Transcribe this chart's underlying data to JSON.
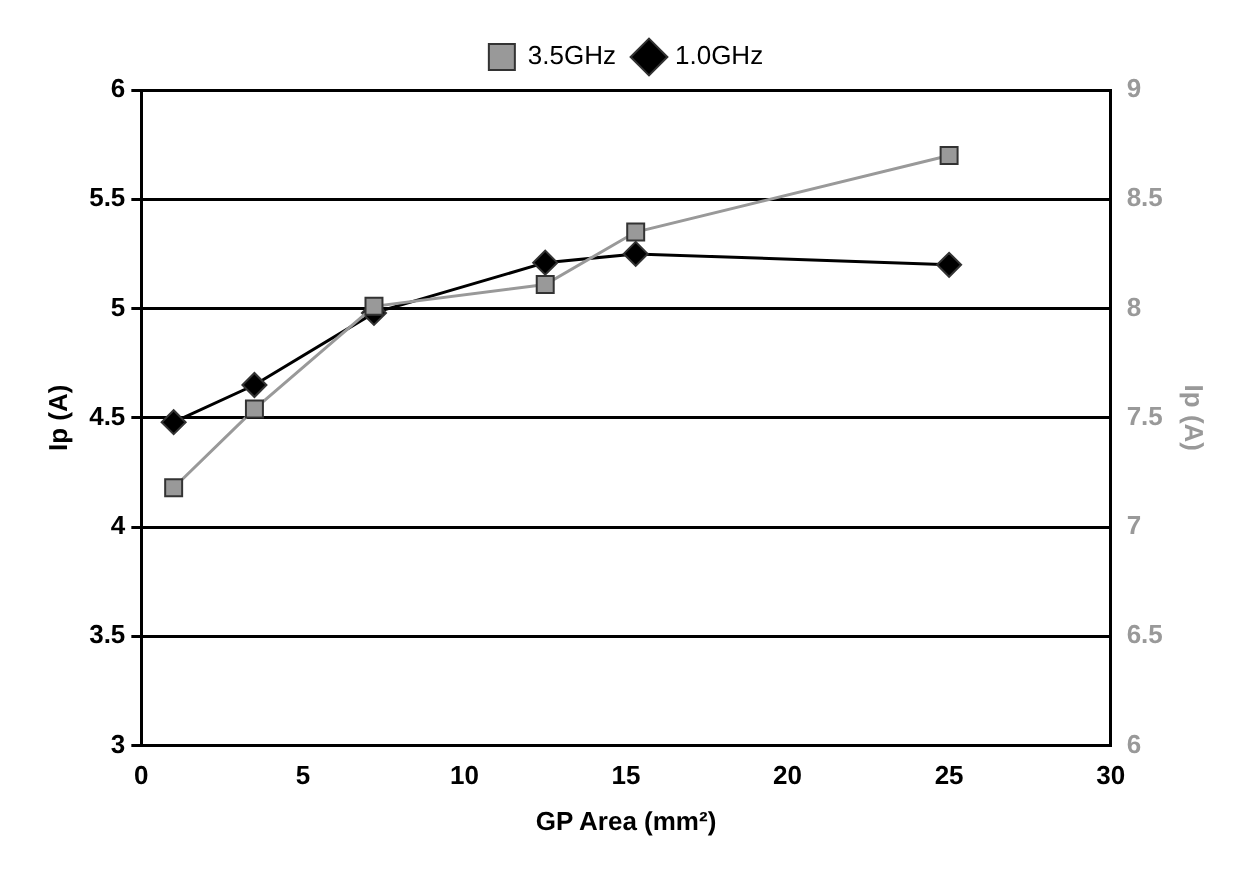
{
  "chart_data": {
    "type": "line",
    "xlabel": "GP Area (mm²)",
    "ylabel": "Ip (A)",
    "y2label": "Ip (A)",
    "xlim": [
      0,
      30
    ],
    "xticks": [
      0,
      5,
      10,
      15,
      20,
      25,
      30
    ],
    "ylim": [
      3,
      6
    ],
    "yticks": [
      3,
      3.5,
      4,
      4.5,
      5,
      5.5,
      6
    ],
    "y2lim": [
      6,
      9
    ],
    "y2ticks": [
      6,
      6.5,
      7,
      7.5,
      8,
      8.5,
      9
    ],
    "grid": "y",
    "legend": "top",
    "series": [
      {
        "name": "1.0GHz",
        "color": "#000000",
        "marker": "diamond",
        "x": [
          1,
          3.5,
          7.2,
          12.5,
          15.3,
          25
        ],
        "values": [
          4.48,
          4.65,
          4.98,
          5.21,
          5.25,
          5.2
        ]
      },
      {
        "name": "3.5GHz",
        "color": "#999999",
        "marker": "square",
        "axis": "y2",
        "x": [
          1,
          3.5,
          7.2,
          12.5,
          15.3,
          25
        ],
        "values": [
          7.18,
          7.54,
          8.01,
          8.11,
          8.35,
          8.7
        ]
      }
    ]
  }
}
